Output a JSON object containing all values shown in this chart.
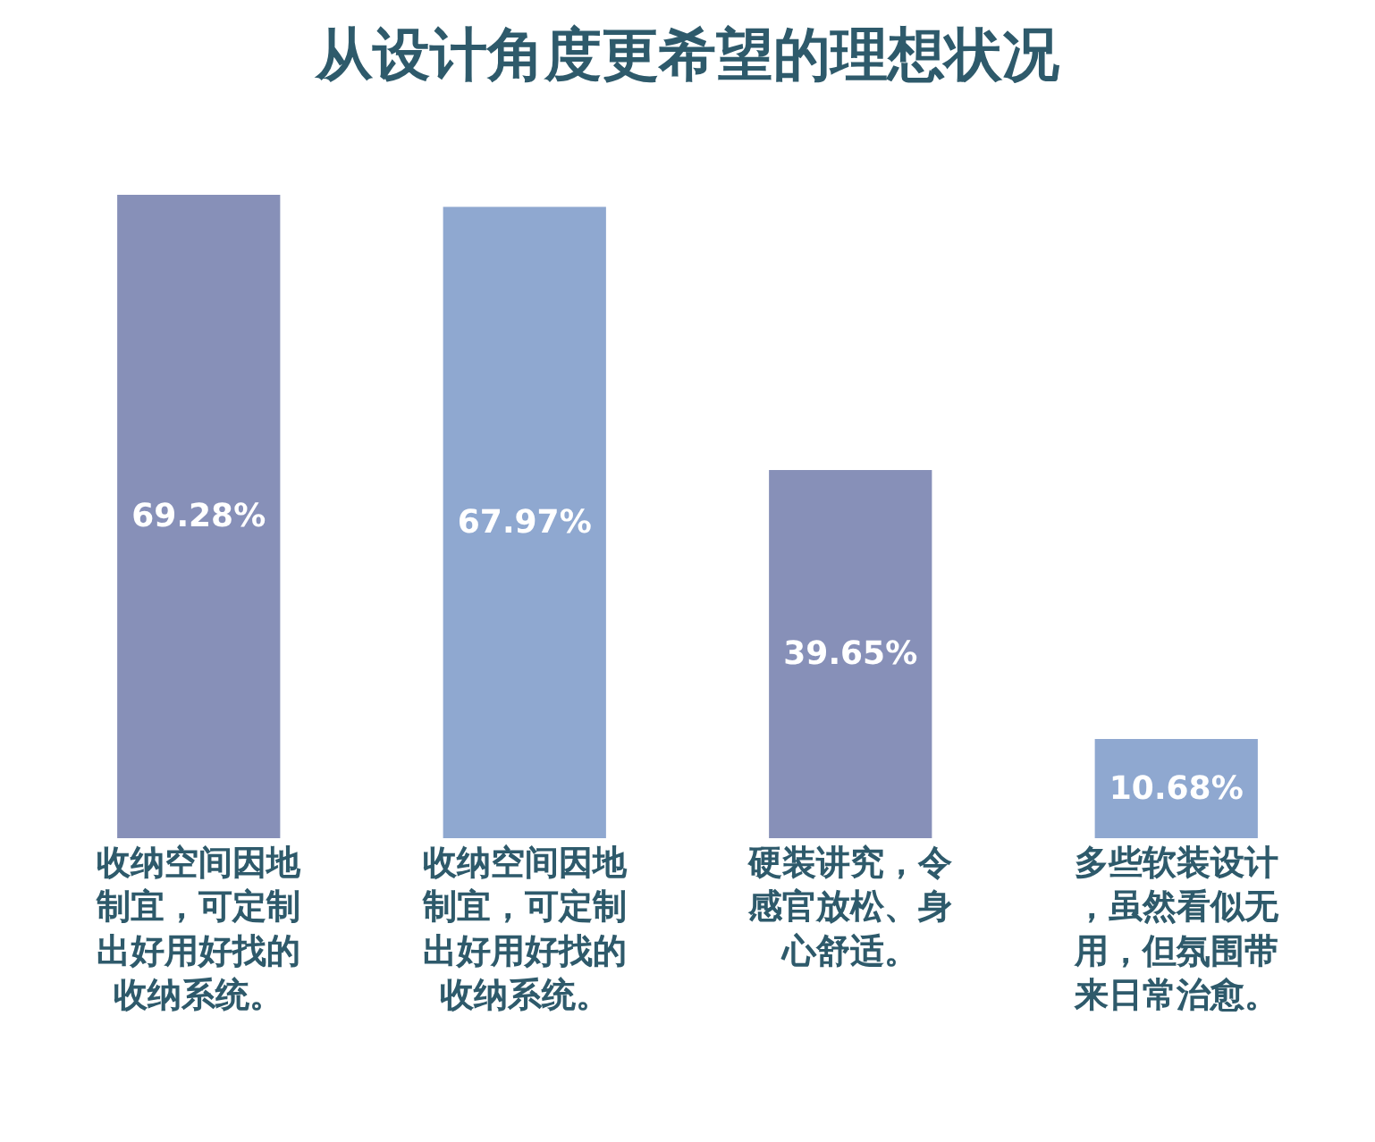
{
  "chart_data": {
    "type": "bar",
    "title": "从设计角度更希望的理想状况",
    "categories": [
      "收纳空间因地制宜，可定制出好用好找的收纳系统。",
      "收纳空间因地制宜，可定制出好用好找的收纳系统。",
      "硬装讲究，令感官放松、身心舒适。",
      "多些软装设计，虽然看似无用，但氛围带来日常治愈。"
    ],
    "values": [
      69.28,
      67.97,
      39.65,
      10.68
    ],
    "colors": [
      "#8790b8",
      "#8fa8d0",
      "#8790b8",
      "#8fa8d0"
    ],
    "value_labels": [
      "69.28%",
      "67.97%",
      "39.65%",
      "10.68%"
    ]
  }
}
